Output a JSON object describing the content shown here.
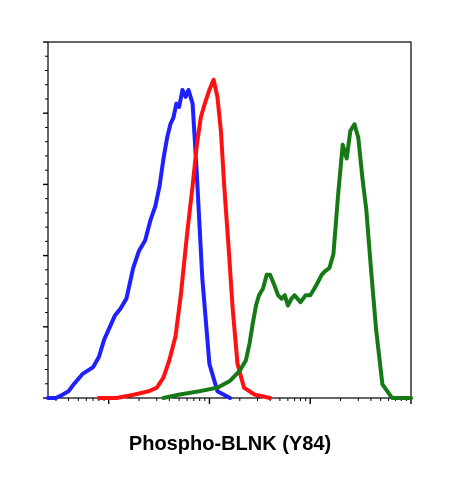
{
  "chart_data": {
    "type": "line",
    "title": "",
    "xlabel": "Phospho-BLNK (Y84)",
    "ylabel": "",
    "x_scale": "log",
    "xlim": [
      0.25,
      1000
    ],
    "ylim": [
      0,
      1.04
    ],
    "grid": false,
    "legend": "none",
    "series": [
      {
        "color": "#1f1fff",
        "x": [
          0.25,
          0.3,
          0.35,
          0.4,
          0.45,
          0.55,
          0.7,
          0.8,
          0.9,
          1.0,
          1.15,
          1.3,
          1.5,
          1.75,
          2.0,
          2.3,
          2.6,
          2.9,
          3.2,
          3.5,
          3.8,
          4.1,
          4.4,
          4.7,
          5.0,
          5.4,
          5.8,
          6.2,
          6.8,
          7.5,
          8.5,
          10,
          12,
          16
        ],
        "y": [
          0.0,
          0.0,
          0.01,
          0.02,
          0.04,
          0.07,
          0.09,
          0.12,
          0.17,
          0.2,
          0.24,
          0.26,
          0.29,
          0.38,
          0.43,
          0.46,
          0.52,
          0.56,
          0.62,
          0.7,
          0.76,
          0.8,
          0.82,
          0.86,
          0.85,
          0.9,
          0.88,
          0.9,
          0.86,
          0.65,
          0.35,
          0.1,
          0.02,
          0.0
        ]
      },
      {
        "color": "#ff1111",
        "x": [
          0.8,
          1.2,
          1.8,
          2.5,
          3.0,
          3.5,
          4.0,
          4.6,
          5.2,
          6.0,
          6.8,
          7.5,
          8.2,
          9.0,
          10.0,
          11.0,
          12.0,
          13.0,
          14.0,
          15.5,
          17.0,
          19.0,
          22.0,
          28.0,
          40.0
        ],
        "y": [
          0.0,
          0.0,
          0.01,
          0.02,
          0.03,
          0.06,
          0.11,
          0.18,
          0.3,
          0.48,
          0.62,
          0.74,
          0.82,
          0.86,
          0.9,
          0.93,
          0.88,
          0.78,
          0.62,
          0.44,
          0.26,
          0.1,
          0.03,
          0.01,
          0.0
        ]
      },
      {
        "color": "#157a15",
        "x": [
          3.5,
          5,
          8,
          12,
          16,
          20,
          23,
          25,
          27,
          29,
          31,
          34,
          37,
          40,
          44,
          48,
          52,
          56,
          60,
          65,
          70,
          80,
          90,
          100,
          110,
          120,
          130,
          140,
          155,
          170,
          190,
          210,
          230,
          250,
          275,
          300,
          330,
          360,
          400,
          450,
          520,
          650,
          900,
          1000
        ],
        "y": [
          0.0,
          0.01,
          0.02,
          0.03,
          0.05,
          0.08,
          0.11,
          0.16,
          0.22,
          0.27,
          0.3,
          0.32,
          0.36,
          0.36,
          0.33,
          0.3,
          0.29,
          0.3,
          0.27,
          0.29,
          0.3,
          0.28,
          0.3,
          0.3,
          0.32,
          0.34,
          0.36,
          0.37,
          0.38,
          0.42,
          0.6,
          0.74,
          0.7,
          0.78,
          0.8,
          0.76,
          0.64,
          0.55,
          0.38,
          0.2,
          0.04,
          0.0,
          0.0,
          0.0
        ]
      }
    ]
  }
}
